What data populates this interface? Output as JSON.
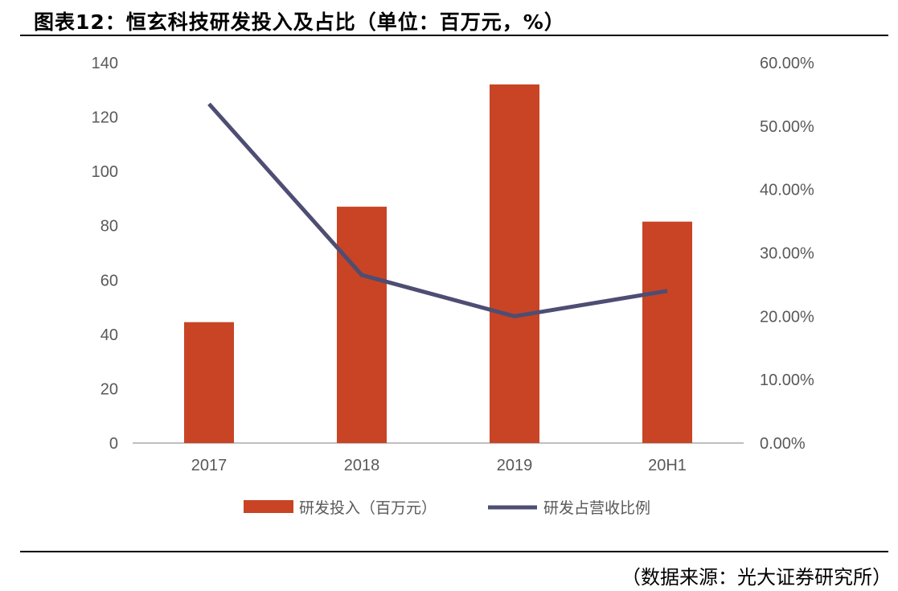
{
  "header": {
    "title": "图表12：恒玄科技研发投入及占比（单位：百万元，%）"
  },
  "footer": {
    "source": "（数据来源：光大证券研究所）"
  },
  "colors": {
    "bar": "#C84424",
    "line": "#4E4D73",
    "axis": "#BFBFBF",
    "tick_text": "#595959"
  },
  "chart_data": {
    "type": "bar",
    "title": "图表12：恒玄科技研发投入及占比（单位：百万元，%）",
    "categories": [
      "2017",
      "2018",
      "2019",
      "20H1"
    ],
    "x_tick_labels": [
      "2017",
      "2018",
      "2019",
      "20H1"
    ],
    "y_left": {
      "range": [
        0,
        140
      ],
      "ticks": [
        0,
        20,
        40,
        60,
        80,
        100,
        120,
        140
      ]
    },
    "y_right": {
      "range": [
        0,
        0.6
      ],
      "ticks": [
        "0.00%",
        "10.00%",
        "20.00%",
        "30.00%",
        "40.00%",
        "50.00%",
        "60.00%"
      ]
    },
    "series": [
      {
        "name": "研发投入（百万元）",
        "type": "bar",
        "axis": "left",
        "values": [
          44.5,
          87,
          132,
          81.5
        ]
      },
      {
        "name": "研发占营收比例",
        "type": "line",
        "axis": "right",
        "values": [
          0.535,
          0.265,
          0.2,
          0.24
        ]
      }
    ],
    "legend": {
      "position": "bottom",
      "entries": [
        "研发投入（百万元）",
        "研发占营收比例"
      ]
    },
    "grid": false
  }
}
